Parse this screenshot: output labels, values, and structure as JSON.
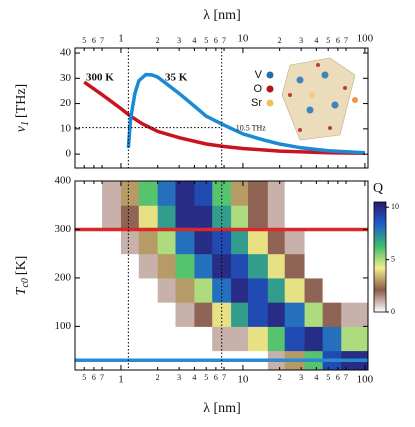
{
  "chart_data": [
    {
      "type": "line",
      "xlabel": "λ [nm]",
      "ylabel": {
        "symbol": "ν",
        "sub": "1",
        "unit": "[THz]"
      },
      "xscale": "log",
      "xlim": [
        0.42,
        106
      ],
      "ylim": [
        -5.5,
        42
      ],
      "xticks": [
        {
          "value": 0.5,
          "label": "5"
        },
        {
          "value": 0.6,
          "label": "6"
        },
        {
          "value": 0.7,
          "label": "7"
        },
        1,
        {
          "value": 2,
          "label": "2"
        },
        {
          "value": 3,
          "label": "3"
        },
        {
          "value": 4,
          "label": "4"
        },
        {
          "value": 5,
          "label": "5"
        },
        {
          "value": 6,
          "label": "6"
        },
        {
          "value": 7,
          "label": "7"
        },
        10,
        {
          "value": 20,
          "label": "2"
        },
        {
          "value": 30,
          "label": "3"
        },
        {
          "value": 40,
          "label": "4"
        },
        {
          "value": 50,
          "label": "5"
        },
        {
          "value": 60,
          "label": "6"
        },
        {
          "value": 70,
          "label": "7"
        },
        100
      ],
      "yticks": [
        0,
        10,
        20,
        30,
        40
      ],
      "series": [
        {
          "name": "300 K",
          "color": "#c8141e",
          "x": [
            0.5,
            0.7,
            1,
            1.2,
            1.5,
            2,
            3,
            5,
            7,
            10,
            20,
            50,
            100
          ],
          "values": [
            28.5,
            23.5,
            18,
            15,
            12,
            9,
            6.5,
            4,
            3,
            2.2,
            1.2,
            0.5,
            0.3
          ]
        },
        {
          "name": "35 K",
          "color": "#1a8ad4",
          "x": [
            1.15,
            1.2,
            1.3,
            1.4,
            1.6,
            1.8,
            2,
            3,
            4,
            5,
            7,
            10,
            15,
            20,
            30,
            50,
            100
          ],
          "values": [
            2.5,
            14,
            24,
            29,
            31.5,
            31.3,
            30.5,
            24,
            19,
            15,
            11.5,
            8,
            5.5,
            4,
            2.5,
            1.3,
            0.5
          ]
        }
      ],
      "vlines": [
        1.15,
        6.7
      ],
      "hline": 10.5,
      "hline_label": "10.5 THz",
      "structure_legend": [
        {
          "label": "V",
          "color": "#1f6fb0"
        },
        {
          "label": "O",
          "color": "#b01818"
        },
        {
          "label": "Sr",
          "color": "#f0c060"
        }
      ]
    },
    {
      "type": "heatmap",
      "xlabel": "λ [nm]",
      "ylabel": {
        "symbol": "T",
        "sub": "c0",
        "unit": "[K]"
      },
      "xscale": "log",
      "xlim": [
        0.42,
        106
      ],
      "ylim": [
        10,
        400
      ],
      "xticks": [
        {
          "value": 0.5,
          "label": "5"
        },
        {
          "value": 0.6,
          "label": "6"
        },
        {
          "value": 0.7,
          "label": "7"
        },
        1,
        {
          "value": 2,
          "label": "2"
        },
        {
          "value": 3,
          "label": "3"
        },
        {
          "value": 4,
          "label": "4"
        },
        {
          "value": 5,
          "label": "5"
        },
        {
          "value": 6,
          "label": "6"
        },
        {
          "value": 7,
          "label": "7"
        },
        10,
        {
          "value": 20,
          "label": "2"
        },
        {
          "value": 30,
          "label": "3"
        },
        {
          "value": 40,
          "label": "4"
        },
        {
          "value": 50,
          "label": "5"
        },
        {
          "value": 60,
          "label": "6"
        },
        {
          "value": 70,
          "label": "7"
        },
        100
      ],
      "yticks": [
        100,
        200,
        300,
        400
      ],
      "xbins": [
        0.42,
        0.7,
        1,
        1.4,
        2,
        2.8,
        4,
        5.6,
        8,
        11,
        16,
        22,
        32,
        45,
        64,
        106
      ],
      "ybins": [
        10,
        50,
        100,
        150,
        200,
        250,
        300,
        350,
        400
      ],
      "z": [
        [
          0,
          0,
          0,
          0,
          0,
          0,
          0,
          0,
          0,
          0,
          1,
          3,
          6,
          9,
          10
        ],
        [
          0,
          0,
          0,
          0,
          0,
          0,
          0,
          1,
          1,
          4,
          6,
          9,
          10,
          8,
          5
        ],
        [
          0,
          0,
          0,
          0,
          0,
          1,
          2,
          4,
          7,
          9,
          10,
          8,
          5,
          2,
          1
        ],
        [
          0,
          0,
          0,
          0,
          1,
          3,
          5,
          8,
          10,
          9,
          7,
          4,
          2,
          0,
          0
        ],
        [
          0,
          0,
          0,
          1,
          3,
          6,
          8,
          10,
          9,
          7,
          4,
          2,
          0,
          0,
          0
        ],
        [
          0,
          0,
          1,
          3,
          5,
          8,
          10,
          9,
          7,
          4,
          2,
          1,
          0,
          0,
          0
        ],
        [
          0,
          1,
          2,
          4,
          7,
          10,
          10,
          7,
          5,
          2,
          1,
          0,
          0,
          0,
          0
        ],
        [
          0,
          1,
          3,
          6,
          8,
          10,
          9,
          6,
          3,
          2,
          1,
          0,
          0,
          0,
          0
        ]
      ],
      "colorbar_label": "Q",
      "zlim": [
        0,
        10.5
      ],
      "colorbar_ticks": [
        0,
        5,
        10
      ],
      "colormap": [
        "#ffffff",
        "#8a5c4c",
        "#f2ee8a",
        "#3cbc6a",
        "#1e5ed0",
        "#2a1c6c"
      ],
      "vlines": [
        1.15,
        6.7
      ],
      "hlines": [
        {
          "value": 300,
          "color": "#d8282a"
        },
        {
          "value": 30,
          "color": "#2a8ad0"
        }
      ]
    }
  ]
}
